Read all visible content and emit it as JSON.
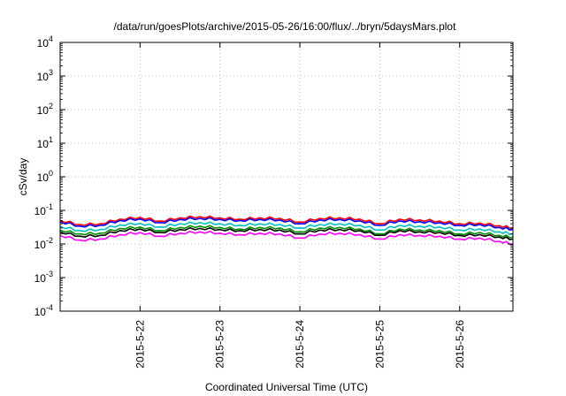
{
  "chart_data": {
    "type": "line",
    "title": "/data/run/goesPlots/archive/2015-05-26/16:00/flux/../bryn/5daysMars.plot",
    "xlabel": "Coordinated Universal Time (UTC)",
    "ylabel": "cSv/day",
    "y_scale": "log",
    "ylim_exponents": [
      -4,
      4
    ],
    "y_tick_base": "10",
    "y_tick_exponents": [
      -4,
      -3,
      -2,
      -1,
      0,
      1,
      2,
      3,
      4
    ],
    "x_range_days": [
      "2015-05-21 00:00",
      "2015-05-26 16:00"
    ],
    "x_ticks": [
      "2015-5-22",
      "2015-5-23",
      "2015-5-24",
      "2015-5-25",
      "2015-5-26"
    ],
    "grid": true,
    "legend": "none",
    "x": [
      "2015-05-21 00:00",
      "2015-05-21 06:00",
      "2015-05-21 12:00",
      "2015-05-21 18:00",
      "2015-05-22 00:00",
      "2015-05-22 06:00",
      "2015-05-22 12:00",
      "2015-05-22 18:00",
      "2015-05-23 00:00",
      "2015-05-23 06:00",
      "2015-05-23 12:00",
      "2015-05-23 18:00",
      "2015-05-24 00:00",
      "2015-05-24 06:00",
      "2015-05-24 12:00",
      "2015-05-24 18:00",
      "2015-05-25 00:00",
      "2015-05-25 06:00",
      "2015-05-25 12:00",
      "2015-05-25 18:00",
      "2015-05-26 00:00",
      "2015-05-26 06:00",
      "2015-05-26 12:00",
      "2015-05-26 16:00"
    ],
    "series": [
      {
        "color": "#ff0000",
        "values": [
          0.05,
          0.038,
          0.04,
          0.055,
          0.062,
          0.048,
          0.06,
          0.065,
          0.06,
          0.055,
          0.06,
          0.058,
          0.045,
          0.058,
          0.06,
          0.055,
          0.04,
          0.055,
          0.052,
          0.048,
          0.04,
          0.042,
          0.035,
          0.03
        ]
      },
      {
        "color": "#0000ff",
        "values": [
          0.046,
          0.034,
          0.036,
          0.05,
          0.056,
          0.043,
          0.054,
          0.058,
          0.054,
          0.05,
          0.054,
          0.052,
          0.04,
          0.052,
          0.054,
          0.049,
          0.036,
          0.049,
          0.046,
          0.043,
          0.036,
          0.038,
          0.031,
          0.027
        ]
      },
      {
        "color": "#00c0c0",
        "values": [
          0.033,
          0.025,
          0.027,
          0.037,
          0.041,
          0.032,
          0.04,
          0.043,
          0.04,
          0.036,
          0.04,
          0.038,
          0.03,
          0.038,
          0.04,
          0.036,
          0.026,
          0.036,
          0.034,
          0.032,
          0.026,
          0.028,
          0.023,
          0.02
        ]
      },
      {
        "color": "#009000",
        "values": [
          0.026,
          0.02,
          0.021,
          0.029,
          0.032,
          0.025,
          0.031,
          0.034,
          0.031,
          0.028,
          0.031,
          0.03,
          0.023,
          0.03,
          0.031,
          0.028,
          0.02,
          0.028,
          0.026,
          0.025,
          0.02,
          0.022,
          0.018,
          0.016
        ]
      },
      {
        "color": "#000000",
        "values": [
          0.023,
          0.017,
          0.018,
          0.025,
          0.028,
          0.022,
          0.027,
          0.029,
          0.027,
          0.025,
          0.027,
          0.026,
          0.02,
          0.026,
          0.027,
          0.025,
          0.018,
          0.025,
          0.023,
          0.022,
          0.018,
          0.019,
          0.016,
          0.014
        ]
      },
      {
        "color": "#ff00ff",
        "values": [
          0.018,
          0.013,
          0.014,
          0.019,
          0.022,
          0.017,
          0.021,
          0.023,
          0.021,
          0.019,
          0.021,
          0.02,
          0.015,
          0.02,
          0.021,
          0.019,
          0.014,
          0.019,
          0.018,
          0.017,
          0.014,
          0.015,
          0.012,
          0.01
        ]
      }
    ]
  }
}
